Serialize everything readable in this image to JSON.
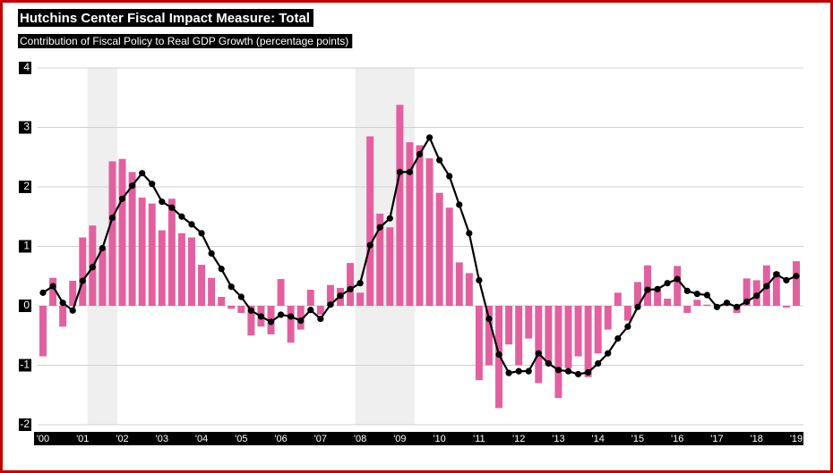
{
  "chart_data": {
    "type": "bar-line",
    "title": "Hutchins Center Fiscal Impact Measure: Total",
    "subtitle": "Contribution of Fiscal Policy to Real GDP Growth (percentage points)",
    "categories": [
      "'00",
      null,
      null,
      null,
      "'01",
      null,
      null,
      null,
      "'02",
      null,
      null,
      null,
      "'03",
      null,
      null,
      null,
      "'04",
      null,
      null,
      null,
      "'05",
      null,
      null,
      null,
      "'06",
      null,
      null,
      null,
      "'07",
      null,
      null,
      null,
      "'08",
      null,
      null,
      null,
      "'09",
      null,
      null,
      null,
      "'10",
      null,
      null,
      null,
      "'11",
      null,
      null,
      null,
      "'12",
      null,
      null,
      null,
      "'13",
      null,
      null,
      null,
      "'14",
      null,
      null,
      null,
      "'15",
      null,
      null,
      null,
      "'16",
      null,
      null,
      null,
      "'17",
      null,
      null,
      null,
      "'18",
      null,
      null,
      null,
      "'19"
    ],
    "series": [
      {
        "type": "bar",
        "color": "#e3609f",
        "values": [
          -0.85,
          0.47,
          -0.35,
          0.42,
          1.15,
          1.35,
          0.97,
          2.43,
          2.47,
          2.25,
          1.82,
          1.72,
          1.27,
          1.8,
          1.22,
          1.15,
          0.69,
          0.47,
          0.15,
          -0.05,
          -0.12,
          -0.5,
          -0.35,
          -0.48,
          0.45,
          -0.62,
          -0.4,
          0.27,
          -0.15,
          0.35,
          0.3,
          0.72,
          0.22,
          2.85,
          1.55,
          1.32,
          3.38,
          2.75,
          2.7,
          2.48,
          1.9,
          1.65,
          0.73,
          0.55,
          -1.25,
          -1.0,
          -1.72,
          -0.65,
          -1.0,
          -0.55,
          -1.3,
          -1.0,
          -1.55,
          -1.05,
          -0.85,
          -1.2,
          -0.8,
          -0.4,
          0.22,
          -0.25,
          0.4,
          0.68,
          0.27,
          0.12,
          0.67,
          -0.12,
          0.1,
          0.02,
          0.02,
          0.03,
          -0.12,
          0.46,
          0.43,
          0.68,
          0.57,
          -0.03,
          0.75
        ]
      },
      {
        "type": "line",
        "color": "#000000",
        "values": [
          0.22,
          0.33,
          0.05,
          -0.08,
          0.42,
          0.65,
          0.97,
          1.48,
          1.8,
          2.02,
          2.23,
          2.05,
          1.75,
          1.65,
          1.5,
          1.37,
          1.22,
          0.88,
          0.62,
          0.32,
          0.15,
          -0.08,
          -0.18,
          -0.27,
          -0.15,
          -0.18,
          -0.25,
          -0.07,
          -0.22,
          0.02,
          0.17,
          0.28,
          0.38,
          1.02,
          1.32,
          1.47,
          2.25,
          2.25,
          2.55,
          2.83,
          2.45,
          2.18,
          1.7,
          1.22,
          0.43,
          -0.22,
          -0.82,
          -1.13,
          -1.1,
          -1.1,
          -0.8,
          -0.97,
          -1.08,
          -1.1,
          -1.15,
          -1.12,
          -0.97,
          -0.8,
          -0.55,
          -0.35,
          -0.02,
          0.27,
          0.28,
          0.38,
          0.45,
          0.25,
          0.2,
          0.18,
          -0.02,
          0.05,
          -0.02,
          0.07,
          0.17,
          0.33,
          0.53,
          0.43,
          0.5
        ]
      }
    ],
    "shaded_ranges": [
      {
        "start": 5,
        "end": 7
      },
      {
        "start": 32,
        "end": 37
      }
    ],
    "ylim": [
      -2,
      4
    ],
    "yticks": [
      -2,
      -1,
      0,
      1,
      2,
      3,
      4
    ],
    "grid": true
  }
}
